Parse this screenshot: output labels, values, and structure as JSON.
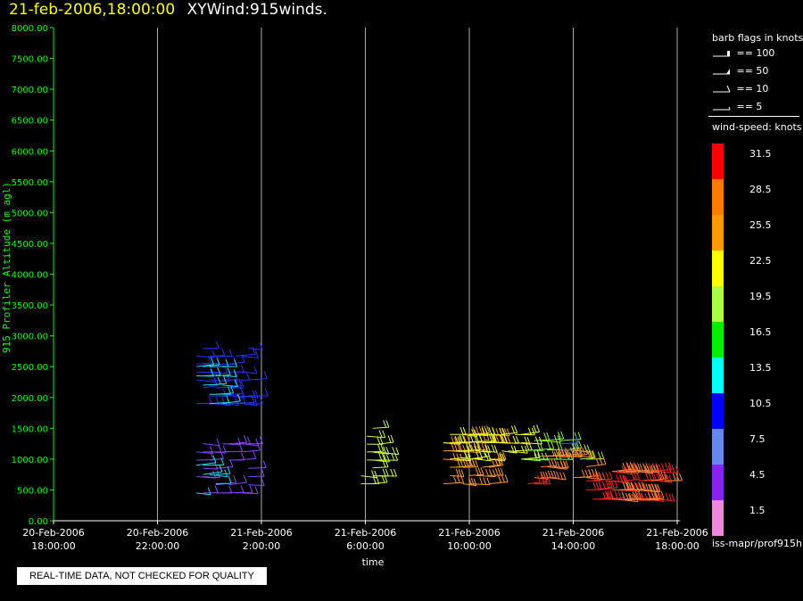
{
  "header": {
    "date": "21-feb-2006,18:00:00",
    "product": "XYWind:915winds."
  },
  "chart_data": {
    "type": "scatter",
    "marker": "wind-barb",
    "title": "21-feb-2006,18:00:00  XYWind:915winds.",
    "xlabel": "time",
    "ylabel": "915 Profiler Altitude (m agl)",
    "x_range": [
      "20-Feb-2006 18:00:00",
      "21-Feb-2006 18:00:00"
    ],
    "ylim": [
      0,
      8000
    ],
    "grid": "vertical lines at time ticks",
    "y_ticks": [
      "0.00",
      "500.00",
      "1000.00",
      "1500.00",
      "2000.00",
      "2500.00",
      "3000.00",
      "3500.00",
      "4000.00",
      "4500.00",
      "5000.00",
      "5500.00",
      "6000.00",
      "6500.00",
      "7000.00",
      "7500.00",
      "8000.00"
    ],
    "x_ticks": [
      {
        "hour": 0,
        "line1": "20-Feb-2006",
        "line2": "18:00:00"
      },
      {
        "hour": 4,
        "line1": "20-Feb-2006",
        "line2": "22:00:00"
      },
      {
        "hour": 8,
        "line1": "21-Feb-2006",
        "line2": "2:00:00"
      },
      {
        "hour": 12,
        "line1": "21-Feb-2006",
        "line2": "6:00:00"
      },
      {
        "hour": 16,
        "line1": "21-Feb-2006",
        "line2": "10:00:00"
      },
      {
        "hour": 20,
        "line1": "21-Feb-2006",
        "line2": "14:00:00"
      },
      {
        "hour": 24,
        "line1": "21-Feb-2006",
        "line2": "18:00:00"
      }
    ],
    "barb_groups": [
      {
        "time_start": "20-Feb-2006 23:30:00",
        "time_end": "21-Feb-2006 01:30:00",
        "alt_min": 1900,
        "alt_max": 2800,
        "speed": 10,
        "color": "#2233ff"
      },
      {
        "time_start": "20-Feb-2006 23:30:00",
        "time_end": "21-Feb-2006 00:30:00",
        "alt_min": 1900,
        "alt_max": 2500,
        "speed": 13,
        "color": "#22ddee"
      },
      {
        "time_start": "20-Feb-2006 23:30:00",
        "time_end": "21-Feb-2006 01:30:00",
        "alt_min": 450,
        "alt_max": 1250,
        "speed": 6,
        "color": "#8844ff"
      },
      {
        "time_start": "20-Feb-2006 23:30:00",
        "time_end": "21-Feb-2006 00:30:00",
        "alt_min": 450,
        "alt_max": 900,
        "speed": 12,
        "color": "#22ddee"
      },
      {
        "time_start": "21-Feb-2006 05:50:00",
        "time_end": "21-Feb-2006 06:30:00",
        "alt_min": 600,
        "alt_max": 1500,
        "speed": 19,
        "color": "#ccff44"
      },
      {
        "time_start": "21-Feb-2006 09:00:00",
        "time_end": "21-Feb-2006 11:00:00",
        "alt_min": 600,
        "alt_max": 1400,
        "speed": 26,
        "color": "#ff9922"
      },
      {
        "time_start": "21-Feb-2006 09:00:00",
        "time_end": "21-Feb-2006 12:00:00",
        "alt_min": 1000,
        "alt_max": 1400,
        "speed": 22,
        "color": "#eeff33"
      },
      {
        "time_start": "21-Feb-2006 12:00:00",
        "time_end": "21-Feb-2006 14:30:00",
        "alt_min": 1000,
        "alt_max": 1300,
        "speed": 18,
        "color": "#88ff33"
      },
      {
        "time_start": "21-Feb-2006 13:30:00",
        "time_end": "21-Feb-2006 14:00:00",
        "alt_min": 1150,
        "alt_max": 1250,
        "speed": 10,
        "color": "#3355ff"
      },
      {
        "time_start": "21-Feb-2006 12:30:00",
        "time_end": "21-Feb-2006 14:30:00",
        "alt_min": 700,
        "alt_max": 1050,
        "speed": 28,
        "color": "#ff8833"
      },
      {
        "time_start": "21-Feb-2006 12:00:00",
        "time_end": "21-Feb-2006 12:30:00",
        "alt_min": 600,
        "alt_max": 700,
        "speed": 32,
        "color": "#ff2222"
      },
      {
        "time_start": "21-Feb-2006 14:30:00",
        "time_end": "21-Feb-2006 17:30:00",
        "alt_min": 350,
        "alt_max": 800,
        "speed": 32,
        "color": "#ff2222"
      },
      {
        "time_start": "21-Feb-2006 15:30:00",
        "time_end": "21-Feb-2006 17:30:00",
        "alt_min": 350,
        "alt_max": 800,
        "speed": 27,
        "color": "#ff8833"
      }
    ]
  },
  "legend": {
    "flags_title": "barb flags in knots",
    "flags": [
      {
        "label": "== 100",
        "kind": "100"
      },
      {
        "label": "== 50",
        "kind": "50"
      },
      {
        "label": "== 10",
        "kind": "10"
      },
      {
        "label": "== 5",
        "kind": "5"
      }
    ],
    "speed_title": "wind-speed: knots",
    "colorbar": [
      {
        "label": "31.5",
        "color": "#ff0000"
      },
      {
        "label": "28.5",
        "color": "#ff7a00"
      },
      {
        "label": "25.5",
        "color": "#ff9a00"
      },
      {
        "label": "22.5",
        "color": "#ffff00"
      },
      {
        "label": "19.5",
        "color": "#aaff44"
      },
      {
        "label": "16.5",
        "color": "#00ee00"
      },
      {
        "label": "13.5",
        "color": "#00ffff"
      },
      {
        "label": "10.5",
        "color": "#0000ff"
      },
      {
        "label": "7.5",
        "color": "#6688ee"
      },
      {
        "label": "4.5",
        "color": "#8822ee"
      },
      {
        "label": "1.5",
        "color": "#ee88dd"
      }
    ],
    "source": "iss-mapr/prof915h"
  },
  "notice": "REAL-TIME DATA, NOT CHECKED FOR QUALITY",
  "colors": {
    "axis": "#00ff00",
    "grid": "#aaaaaa",
    "title_date": "#ffff00"
  }
}
